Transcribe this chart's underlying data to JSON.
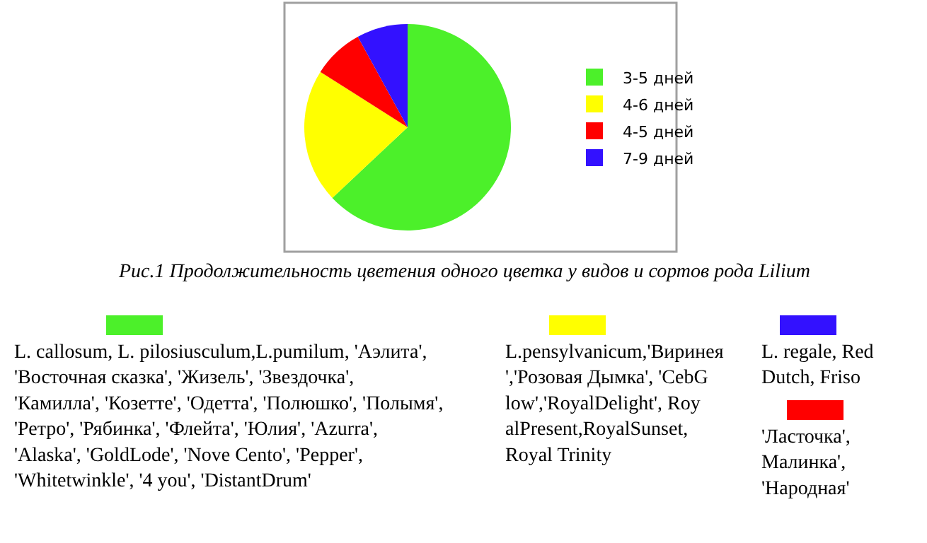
{
  "chart_data": {
    "type": "pie",
    "categories": [
      "3-5 дней",
      "4-6 дней",
      "4-5 дней",
      "7-9 дней"
    ],
    "values": [
      63,
      21,
      8,
      8
    ],
    "colors": [
      "#4cf02a",
      "#ffff00",
      "#ff0000",
      "#3311ff"
    ],
    "legend": "right",
    "annotations": [
      "Рис.1 Продолжительность цветения одного цветка у видов и сортов рода Lilium",
      "L. callosum, L. pilosiusculum,L.pumilum, 'Аэлита', 'Восточная сказка', 'Жизель', 'Звездочка', 'Камилла', 'Козетте', 'Одетта', 'Полюшко', 'Полымя', 'Ретро', 'Рябинка', 'Флейта', 'Юлия', 'Azurra', 'Alaska', 'GoldLode', 'Nove Cento', 'Pepper', 'Whitetwinkle', '4 you', 'DistantDrum'",
      "L.pensylvanicum,'Виринея','Розовая Дымка', 'CebGlow','RoyalDelight', RoyalPresent,RoyalSunset, Royal Trinity",
      "L. regale, Red Dutch, Friso",
      "'Ласточка', Малинка', 'Народная'"
    ]
  }
}
